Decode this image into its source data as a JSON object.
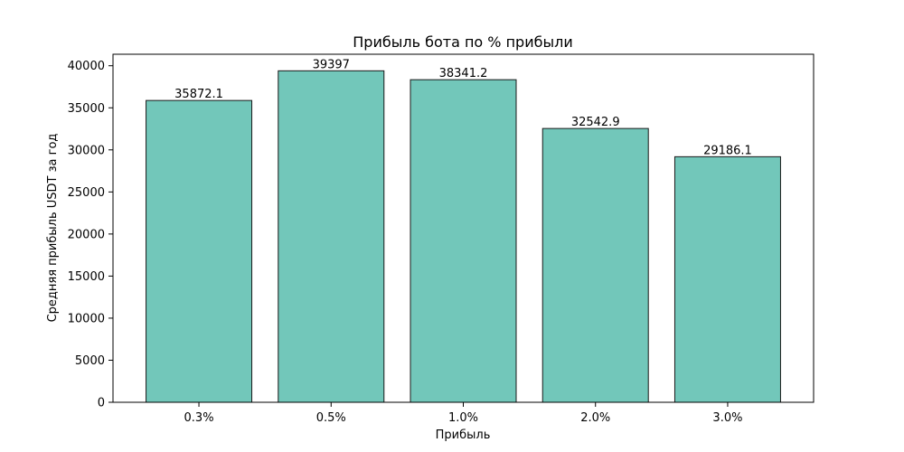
{
  "chart_data": {
    "type": "bar",
    "title": "Прибыль бота по % прибыли",
    "xlabel": "Прибыль",
    "ylabel": "Средняя прибыль USDT за год",
    "categories": [
      "0.3%",
      "0.5%",
      "1.0%",
      "2.0%",
      "3.0%"
    ],
    "values": [
      35872.1,
      39397,
      38341.2,
      32542.9,
      29186.1
    ],
    "value_labels": [
      "35872.1",
      "39397",
      "38341.2",
      "32542.9",
      "29186.1"
    ],
    "ylim": [
      0,
      41367
    ],
    "yticks": [
      0,
      5000,
      10000,
      15000,
      20000,
      25000,
      30000,
      35000,
      40000
    ],
    "grid": false,
    "colors": {
      "bar_fill": "#72c7ba",
      "bar_edge": "#1a1a1a"
    }
  }
}
